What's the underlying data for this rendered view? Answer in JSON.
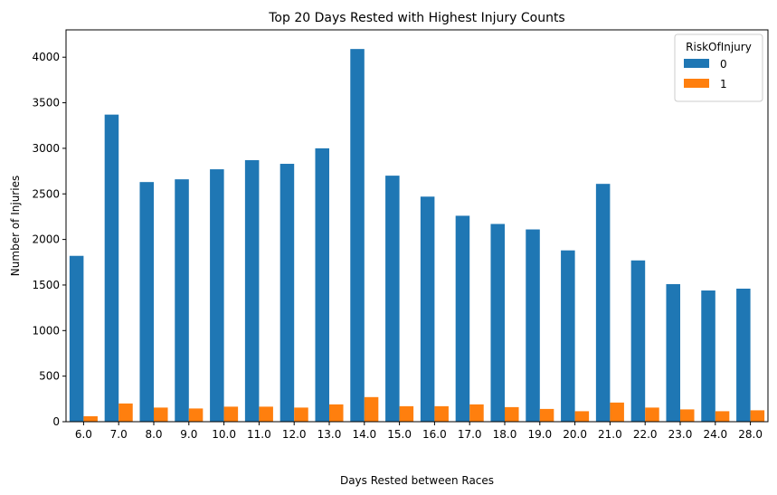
{
  "chart_data": {
    "type": "bar",
    "title": "Top 20 Days Rested with Highest Injury Counts",
    "xlabel": "Days Rested between Races",
    "ylabel": "Number of Injuries",
    "categories": [
      "6.0",
      "7.0",
      "8.0",
      "9.0",
      "10.0",
      "11.0",
      "12.0",
      "13.0",
      "14.0",
      "15.0",
      "16.0",
      "17.0",
      "18.0",
      "19.0",
      "20.0",
      "21.0",
      "22.0",
      "23.0",
      "24.0",
      "28.0"
    ],
    "series": [
      {
        "name": "0",
        "color": "#1f77b4",
        "values": [
          1820,
          3370,
          2630,
          2660,
          2770,
          2870,
          2830,
          3000,
          4090,
          2700,
          2470,
          2260,
          2170,
          2110,
          1880,
          2610,
          1770,
          1510,
          1440,
          1460
        ]
      },
      {
        "name": "1",
        "color": "#ff7f0e",
        "values": [
          60,
          200,
          155,
          145,
          165,
          165,
          155,
          190,
          270,
          170,
          170,
          190,
          160,
          140,
          115,
          210,
          155,
          135,
          115,
          125
        ]
      }
    ],
    "ylim": [
      0,
      4300
    ],
    "yticks": [
      0,
      500,
      1000,
      1500,
      2000,
      2500,
      3000,
      3500,
      4000
    ],
    "legend": {
      "title": "RiskOfInjury",
      "placement": "top-right"
    },
    "grid": false
  }
}
